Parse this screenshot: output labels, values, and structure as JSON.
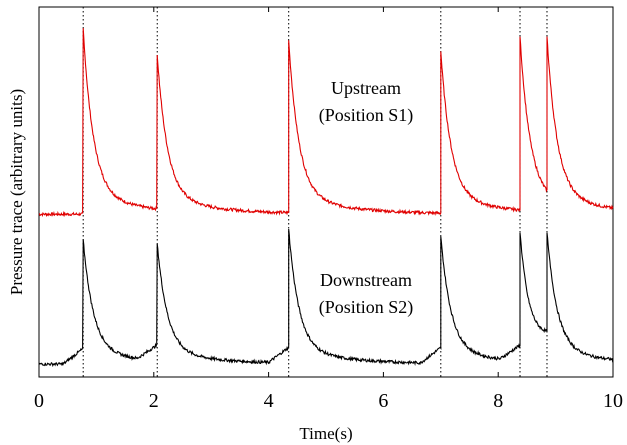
{
  "chart_data": {
    "type": "line",
    "xlabel": "Time(s)",
    "ylabel": "Pressure trace (arbitrary units)",
    "xlim": [
      0,
      10
    ],
    "ylim": [
      0,
      10
    ],
    "xticks": [
      0,
      2,
      4,
      6,
      8,
      10
    ],
    "xtick_labels": [
      "0",
      "2",
      "4",
      "6",
      "8",
      "10"
    ],
    "y_ticks_shown": false,
    "grid": false,
    "event_markers": {
      "style": "dotted",
      "x": [
        0.77,
        2.06,
        4.35,
        7.0,
        8.38,
        8.85
      ]
    },
    "series": [
      {
        "name": "Upstream (Position S1)",
        "color": "#e00000",
        "baseline": 4.4,
        "peaks": [
          {
            "x": 0.77,
            "y": 9.4
          },
          {
            "x": 2.06,
            "y": 8.7
          },
          {
            "x": 4.35,
            "y": 9.1
          },
          {
            "x": 7.0,
            "y": 8.8
          },
          {
            "x": 8.38,
            "y": 9.2
          },
          {
            "x": 8.85,
            "y": 9.2
          }
        ]
      },
      {
        "name": "Downstream (Position S2)",
        "color": "#000000",
        "baseline": 0.35,
        "peaks": [
          {
            "x": 0.77,
            "y": 3.7
          },
          {
            "x": 2.06,
            "y": 3.6
          },
          {
            "x": 4.35,
            "y": 4.0
          },
          {
            "x": 7.0,
            "y": 3.8
          },
          {
            "x": 8.38,
            "y": 3.9
          },
          {
            "x": 8.85,
            "y": 3.9
          }
        ]
      }
    ],
    "annotations": [
      {
        "lines": [
          "Upstream",
          "(Position S1)"
        ],
        "color": "#e00000"
      },
      {
        "lines": [
          "Downstream",
          "(Position S2)"
        ],
        "color": "#000000"
      }
    ]
  }
}
